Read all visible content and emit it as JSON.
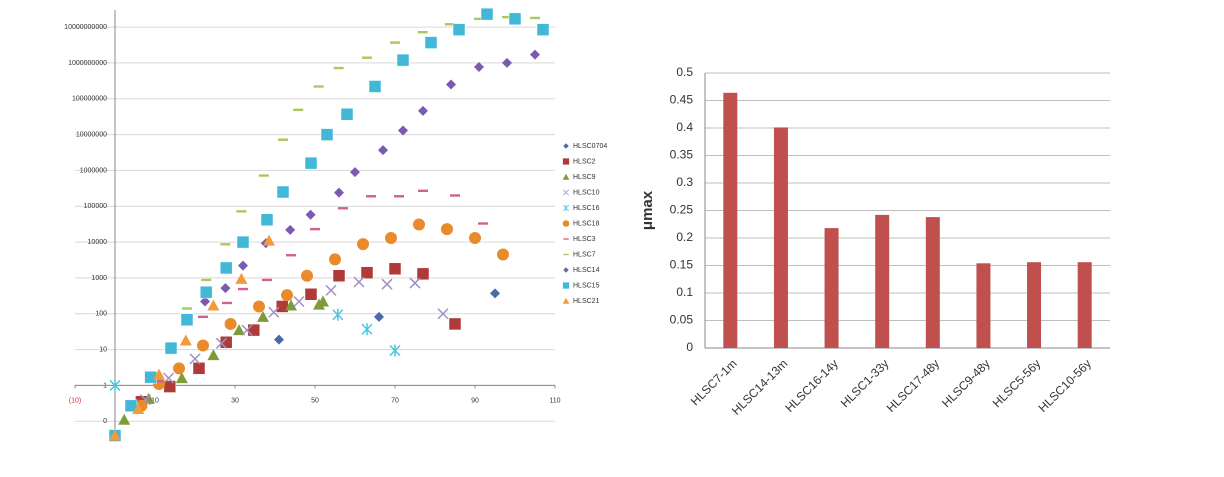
{
  "chart_data": [
    {
      "type": "scatter",
      "ylog": true,
      "grid": true,
      "legend": "right",
      "xlim": [
        -10,
        110
      ],
      "xticks": [
        {
          "value": -10,
          "label": "(10)"
        },
        10,
        30,
        50,
        70,
        90,
        110
      ],
      "ylim": [
        0.03,
        30000000000
      ],
      "yticks": [
        {
          "value": 0.1,
          "label": "0"
        },
        1,
        10,
        100,
        1000,
        10000,
        100000,
        1000000,
        10000000,
        100000000,
        1000000000,
        10000000000
      ],
      "axis_cross": {
        "x": 0,
        "y": 1
      },
      "series": [
        {
          "name": "HLSC0704",
          "color": "#4a6aa8",
          "marker": "diamond",
          "x": [
            41,
            66,
            95
          ],
          "values": [
            19,
            82,
            370
          ]
        },
        {
          "name": "HLSC2",
          "color": "#b03a38",
          "marker": "square",
          "x": [
            0,
            6.6,
            13.7,
            21,
            27.8,
            34.7,
            41.8,
            49,
            56,
            63,
            70,
            77,
            85
          ],
          "values": [
            0.04,
            0.35,
            0.93,
            3,
            16,
            35,
            160,
            350,
            1150,
            1400,
            1800,
            1300,
            52
          ]
        },
        {
          "name": "HLSC9",
          "color": "#7e9b3a",
          "marker": "triangle",
          "x": [
            2.3,
            8.4,
            16.7,
            24.6,
            31,
            37,
            44,
            51,
            52
          ],
          "values": [
            0.11,
            0.42,
            1.6,
            7,
            35,
            82,
            170,
            180,
            220
          ]
        },
        {
          "name": "HLSC10",
          "color": "#9f8fc8",
          "marker": "x",
          "x": [
            7.6,
            13.4,
            20,
            26.6,
            33,
            39.7,
            46,
            54,
            61,
            68,
            75,
            82
          ],
          "values": [
            0.4,
            1.6,
            5.5,
            15,
            35,
            110,
            220,
            450,
            770,
            670,
            720,
            100
          ]
        },
        {
          "name": "HLSC16",
          "color": "#4cc5e0",
          "marker": "asterisk",
          "x": [
            0,
            55.7,
            63,
            70
          ],
          "values": [
            1,
            94,
            37,
            9.4
          ]
        },
        {
          "name": "HLSC18",
          "color": "#e98a2b",
          "marker": "circle",
          "x": [
            6.6,
            11,
            16,
            22,
            28.9,
            36,
            43,
            48,
            55,
            62,
            69,
            76,
            83,
            90,
            97
          ],
          "values": [
            0.27,
            1.1,
            3,
            13,
            52,
            160,
            330,
            1150,
            3300,
            8800,
            13000,
            31000,
            23000,
            13000,
            4500
          ]
        },
        {
          "name": "HLSC3",
          "color": "#d2608e",
          "marker": "dash",
          "x": [
            11,
            22,
            28,
            32,
            38,
            44,
            50,
            57,
            64,
            71,
            77,
            85,
            92
          ],
          "values": [
            1.3,
            82,
            200,
            490,
            880,
            4300,
            23000,
            88000,
            190000,
            190000,
            270000,
            200000,
            33000
          ]
        },
        {
          "name": "HLSC7",
          "color": "#a9c85e",
          "marker": "dash",
          "x": [
            18,
            22.8,
            27.6,
            31.6,
            37.2,
            42,
            45.8,
            50.9,
            55.9,
            63,
            70,
            76.9,
            83.7,
            91,
            98,
            105
          ],
          "values": [
            140,
            880,
            8700,
            72000,
            720000,
            7200000,
            49000000,
            220000000,
            720000000,
            1400000000,
            3700000000,
            7200000000,
            12000000000,
            17000000000,
            19000000000,
            18000000000
          ]
        },
        {
          "name": "HLSC14",
          "color": "#7a5bb0",
          "marker": "diamond",
          "x": [
            22.5,
            27.6,
            32,
            37.7,
            43.8,
            48.9,
            56,
            60,
            67,
            72,
            77,
            84,
            91,
            98,
            105
          ],
          "values": [
            220,
            520,
            2200,
            9300,
            22000,
            58000,
            240000,
            900000,
            3700000,
            13000000,
            46000000,
            250000000,
            770000000,
            1000000000,
            1700000000
          ]
        },
        {
          "name": "HLSC15",
          "color": "#42b8d8",
          "marker": "square",
          "x": [
            0,
            4,
            8.9,
            14,
            18,
            22.8,
            27.8,
            32,
            38,
            42,
            49,
            53,
            58,
            65,
            72,
            79,
            86,
            93,
            100,
            107
          ],
          "values": [
            0.04,
            0.27,
            1.7,
            11,
            68,
            400,
            1900,
            10000,
            42000,
            250000,
            1600000,
            10000000,
            37000000,
            220000000,
            1200000000,
            3700000000,
            8500000000,
            23000000000,
            17000000000,
            8500000000
          ]
        },
        {
          "name": "HLSC21",
          "color": "#f29a3c",
          "marker": "triangle",
          "x": [
            0,
            5.8,
            11,
            17.7,
            24.6,
            31.6,
            38.5
          ],
          "values": [
            0.04,
            0.22,
            2,
            18,
            170,
            940,
            11000
          ]
        }
      ]
    },
    {
      "type": "bar",
      "grid": true,
      "ylabel": "μmax",
      "color": "#c0504d",
      "categories": [
        "HLSC7-1m",
        "HLSC14-13m",
        "HLSC16-14y",
        "HLSC1-33y",
        "HLSC17-48y",
        "HLSC9-48y",
        "HLSC5-56y",
        "HLSC10-56y"
      ],
      "values": [
        0.464,
        0.401,
        0.218,
        0.242,
        0.238,
        0.154,
        0.156,
        0.156
      ],
      "ylim": [
        0,
        0.5
      ],
      "yticks": [
        0,
        0.05,
        0.1,
        0.15,
        0.2,
        0.25,
        0.3,
        0.35,
        0.4,
        0.45,
        0.5
      ]
    }
  ]
}
